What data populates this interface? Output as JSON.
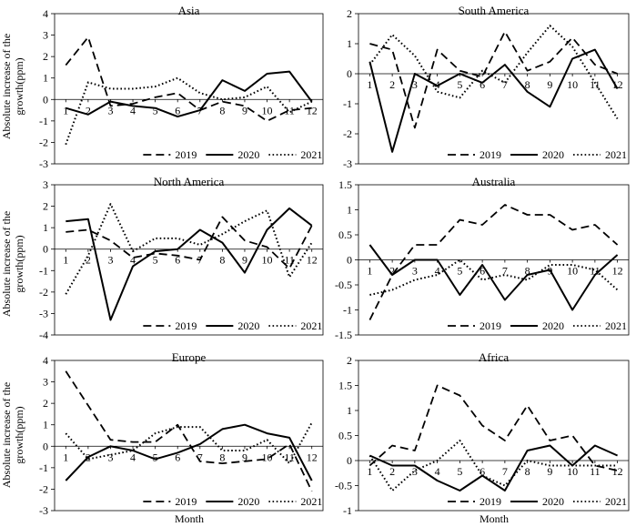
{
  "figure": {
    "y_axis_label_line1": "Absolute increase of the",
    "y_axis_label_line2": "growth(ppm)",
    "x_axis_label": "Month"
  },
  "legend": [
    {
      "label": "2019",
      "style": "dashed"
    },
    {
      "label": "2020",
      "style": "solid"
    },
    {
      "label": "2021",
      "style": "dotted"
    }
  ],
  "chart_data": [
    {
      "type": "line",
      "title": "Asia",
      "x": [
        1,
        2,
        3,
        4,
        5,
        6,
        7,
        8,
        9,
        10,
        11,
        12
      ],
      "ylim": [
        -3,
        4
      ],
      "yticks": [
        -3,
        -2,
        -1,
        0,
        1,
        2,
        3,
        4
      ],
      "series": [
        {
          "name": "2019",
          "values": [
            1.6,
            2.9,
            -0.3,
            -0.2,
            0.1,
            0.3,
            -0.5,
            -0.1,
            -0.3,
            -1.0,
            -0.5,
            -0.4
          ]
        },
        {
          "name": "2020",
          "values": [
            -0.4,
            -0.7,
            -0.1,
            -0.3,
            -0.4,
            -0.8,
            -0.5,
            0.9,
            0.4,
            1.2,
            1.3,
            -0.1
          ]
        },
        {
          "name": "2021",
          "values": [
            -2.1,
            0.8,
            0.5,
            0.5,
            0.6,
            1.0,
            0.3,
            0.0,
            0.1,
            0.6,
            -0.6,
            -0.1
          ]
        }
      ]
    },
    {
      "type": "line",
      "title": "South America",
      "x": [
        1,
        2,
        3,
        4,
        5,
        6,
        7,
        8,
        9,
        10,
        11,
        12
      ],
      "ylim": [
        -3,
        2
      ],
      "yticks": [
        -3,
        -2,
        -1,
        0,
        1,
        2
      ],
      "series": [
        {
          "name": "2019",
          "values": [
            1.0,
            0.8,
            -1.8,
            0.8,
            0.1,
            -0.1,
            1.4,
            0.1,
            0.4,
            1.2,
            0.3,
            0.0
          ]
        },
        {
          "name": "2020",
          "values": [
            0.4,
            -2.6,
            0.0,
            -0.4,
            0.0,
            -0.3,
            0.3,
            -0.6,
            -1.1,
            0.5,
            0.8,
            -0.5
          ]
        },
        {
          "name": "2021",
          "values": [
            0.3,
            1.3,
            0.6,
            -0.6,
            -0.8,
            0.1,
            -0.3,
            0.7,
            1.6,
            0.9,
            -0.3,
            -1.5
          ]
        }
      ]
    },
    {
      "type": "line",
      "title": "North America",
      "x": [
        1,
        2,
        3,
        4,
        5,
        6,
        7,
        8,
        9,
        10,
        11,
        12
      ],
      "ylim": [
        -4,
        3
      ],
      "yticks": [
        -4,
        -3,
        -2,
        -1,
        0,
        1,
        2,
        3
      ],
      "series": [
        {
          "name": "2019",
          "values": [
            0.8,
            0.9,
            0.4,
            -0.4,
            -0.2,
            -0.3,
            -0.5,
            1.5,
            0.4,
            0.1,
            -0.9,
            1.1
          ]
        },
        {
          "name": "2020",
          "values": [
            1.3,
            1.4,
            -3.3,
            -0.8,
            -0.1,
            0.0,
            0.9,
            0.3,
            -1.1,
            0.9,
            1.9,
            1.1
          ]
        },
        {
          "name": "2021",
          "values": [
            -2.1,
            -0.3,
            2.1,
            -0.1,
            0.5,
            0.5,
            0.2,
            0.7,
            1.3,
            1.8,
            -1.3,
            0.3
          ]
        }
      ]
    },
    {
      "type": "line",
      "title": "Australia",
      "x": [
        1,
        2,
        3,
        4,
        5,
        6,
        7,
        8,
        9,
        10,
        11,
        12
      ],
      "ylim": [
        -1.5,
        1.5
      ],
      "yticks": [
        -1.5,
        -1,
        -0.5,
        0,
        0.5,
        1,
        1.5
      ],
      "series": [
        {
          "name": "2019",
          "values": [
            -1.2,
            -0.3,
            0.3,
            0.3,
            0.8,
            0.7,
            1.1,
            0.9,
            0.9,
            0.6,
            0.7,
            0.3
          ]
        },
        {
          "name": "2020",
          "values": [
            0.3,
            -0.3,
            0.0,
            0.0,
            -0.7,
            -0.1,
            -0.8,
            -0.3,
            -0.2,
            -1.0,
            -0.3,
            0.1
          ]
        },
        {
          "name": "2021",
          "values": [
            -0.7,
            -0.6,
            -0.4,
            -0.3,
            0.0,
            -0.4,
            -0.3,
            -0.4,
            -0.1,
            -0.1,
            -0.2,
            -0.6
          ]
        }
      ]
    },
    {
      "type": "line",
      "title": "Europe",
      "x": [
        1,
        2,
        3,
        4,
        5,
        6,
        7,
        8,
        9,
        10,
        11,
        12
      ],
      "ylim": [
        -3,
        4
      ],
      "yticks": [
        -3,
        -2,
        -1,
        0,
        1,
        2,
        3,
        4
      ],
      "series": [
        {
          "name": "2019",
          "values": [
            3.5,
            1.9,
            0.3,
            0.2,
            0.2,
            1.0,
            -0.7,
            -0.8,
            -0.7,
            -0.6,
            0.1,
            -2.1
          ]
        },
        {
          "name": "2020",
          "values": [
            -1.6,
            -0.5,
            0.0,
            -0.2,
            -0.6,
            -0.3,
            0.1,
            0.8,
            1.0,
            0.6,
            0.4,
            -1.6
          ]
        },
        {
          "name": "2021",
          "values": [
            0.6,
            -0.6,
            -0.4,
            -0.2,
            0.6,
            0.9,
            0.9,
            -0.2,
            -0.2,
            0.3,
            -0.8,
            1.1
          ]
        }
      ]
    },
    {
      "type": "line",
      "title": "Africa",
      "x": [
        1,
        2,
        3,
        4,
        5,
        6,
        7,
        8,
        9,
        10,
        11,
        12
      ],
      "ylim": [
        -1,
        2
      ],
      "yticks": [
        -1,
        -0.5,
        0,
        0.5,
        1,
        1.5,
        2
      ],
      "series": [
        {
          "name": "2019",
          "values": [
            -0.1,
            0.3,
            0.2,
            1.5,
            1.3,
            0.7,
            0.4,
            1.1,
            0.4,
            0.5,
            -0.1,
            -0.2
          ]
        },
        {
          "name": "2020",
          "values": [
            0.1,
            -0.1,
            -0.1,
            -0.4,
            -0.6,
            -0.3,
            -0.6,
            0.2,
            0.3,
            -0.1,
            0.3,
            0.1
          ]
        },
        {
          "name": "2021",
          "values": [
            0.1,
            -0.6,
            -0.2,
            0.0,
            0.4,
            -0.3,
            -0.5,
            0.0,
            -0.1,
            -0.1,
            -0.1,
            -0.1
          ]
        }
      ]
    }
  ]
}
